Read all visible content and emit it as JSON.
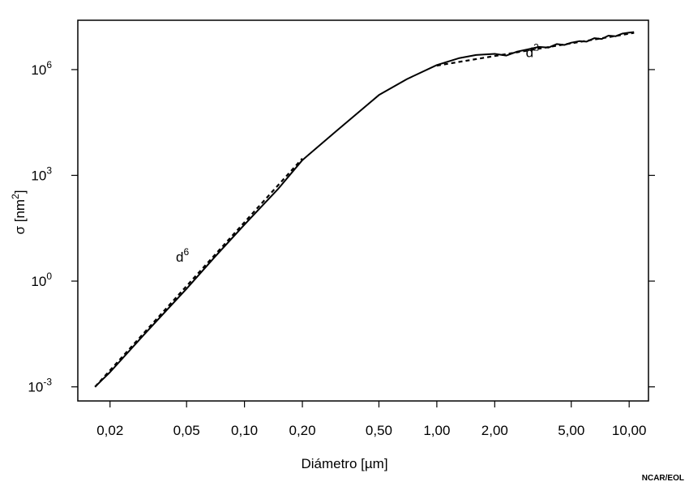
{
  "chart_data": {
    "type": "line",
    "xlabel": "Diámetro [µm]",
    "ylabel_base": "σ [nm",
    "ylabel_sup": "2",
    "ylabel_end": "]",
    "x_scale": "log",
    "y_scale": "log",
    "xlim": [
      0.0136,
      12.6
    ],
    "ylim_exponent": [
      -3.4,
      7.4
    ],
    "x_ticks": [
      {
        "value": 0.02,
        "label": "0,02"
      },
      {
        "value": 0.05,
        "label": "0,05"
      },
      {
        "value": 0.1,
        "label": "0,10"
      },
      {
        "value": 0.2,
        "label": "0,20"
      },
      {
        "value": 0.5,
        "label": "0,50"
      },
      {
        "value": 1.0,
        "label": "1,00"
      },
      {
        "value": 2.0,
        "label": "2,00"
      },
      {
        "value": 5.0,
        "label": "5,00"
      },
      {
        "value": 10.0,
        "label": "10,00"
      }
    ],
    "y_ticks": [
      {
        "exponent": -3,
        "base": "10",
        "sup": "-3"
      },
      {
        "exponent": 0,
        "base": "10",
        "sup": "0"
      },
      {
        "exponent": 3,
        "base": "10",
        "sup": "3"
      },
      {
        "exponent": 6,
        "base": "10",
        "sup": "6"
      }
    ],
    "series": [
      {
        "style": "solid",
        "x": [
          0.0167,
          0.02,
          0.03,
          0.05,
          0.07,
          0.1,
          0.15,
          0.2,
          0.3,
          0.5,
          0.7,
          1.0,
          1.3,
          1.6,
          2.0,
          2.3,
          2.6,
          3.0,
          3.4,
          3.8,
          4.2,
          4.6,
          5.0,
          5.5,
          6.0,
          6.6,
          7.2,
          7.8,
          8.5,
          9.2,
          10.0,
          10.6
        ],
        "y": [
          0.001,
          0.0026,
          0.03,
          0.61,
          4.8,
          40,
          420,
          2700,
          18000,
          190000,
          540000,
          1350000,
          2100000,
          2600000,
          2800000,
          2500000,
          3200000,
          3800000,
          4400000,
          4200000,
          5300000,
          5000000,
          5800000,
          6400000,
          6200000,
          7800000,
          7400000,
          9200000,
          8800000,
          10500000,
          11200000,
          11600000
        ]
      },
      {
        "style": "dashed",
        "x": [
          0.0167,
          0.2
        ],
        "y": [
          0.001,
          3000
        ]
      },
      {
        "style": "dashed",
        "x": [
          1.0,
          10.6
        ],
        "y": [
          1300000,
          11000000
        ]
      }
    ],
    "annotations": [
      {
        "base": "d",
        "sup": "6",
        "x": 0.044,
        "y_exponent": 0.55
      },
      {
        "base": "d",
        "sup": "2",
        "x": 2.9,
        "y_exponent": 6.35
      }
    ]
  },
  "credit": "NCAR/EOL"
}
